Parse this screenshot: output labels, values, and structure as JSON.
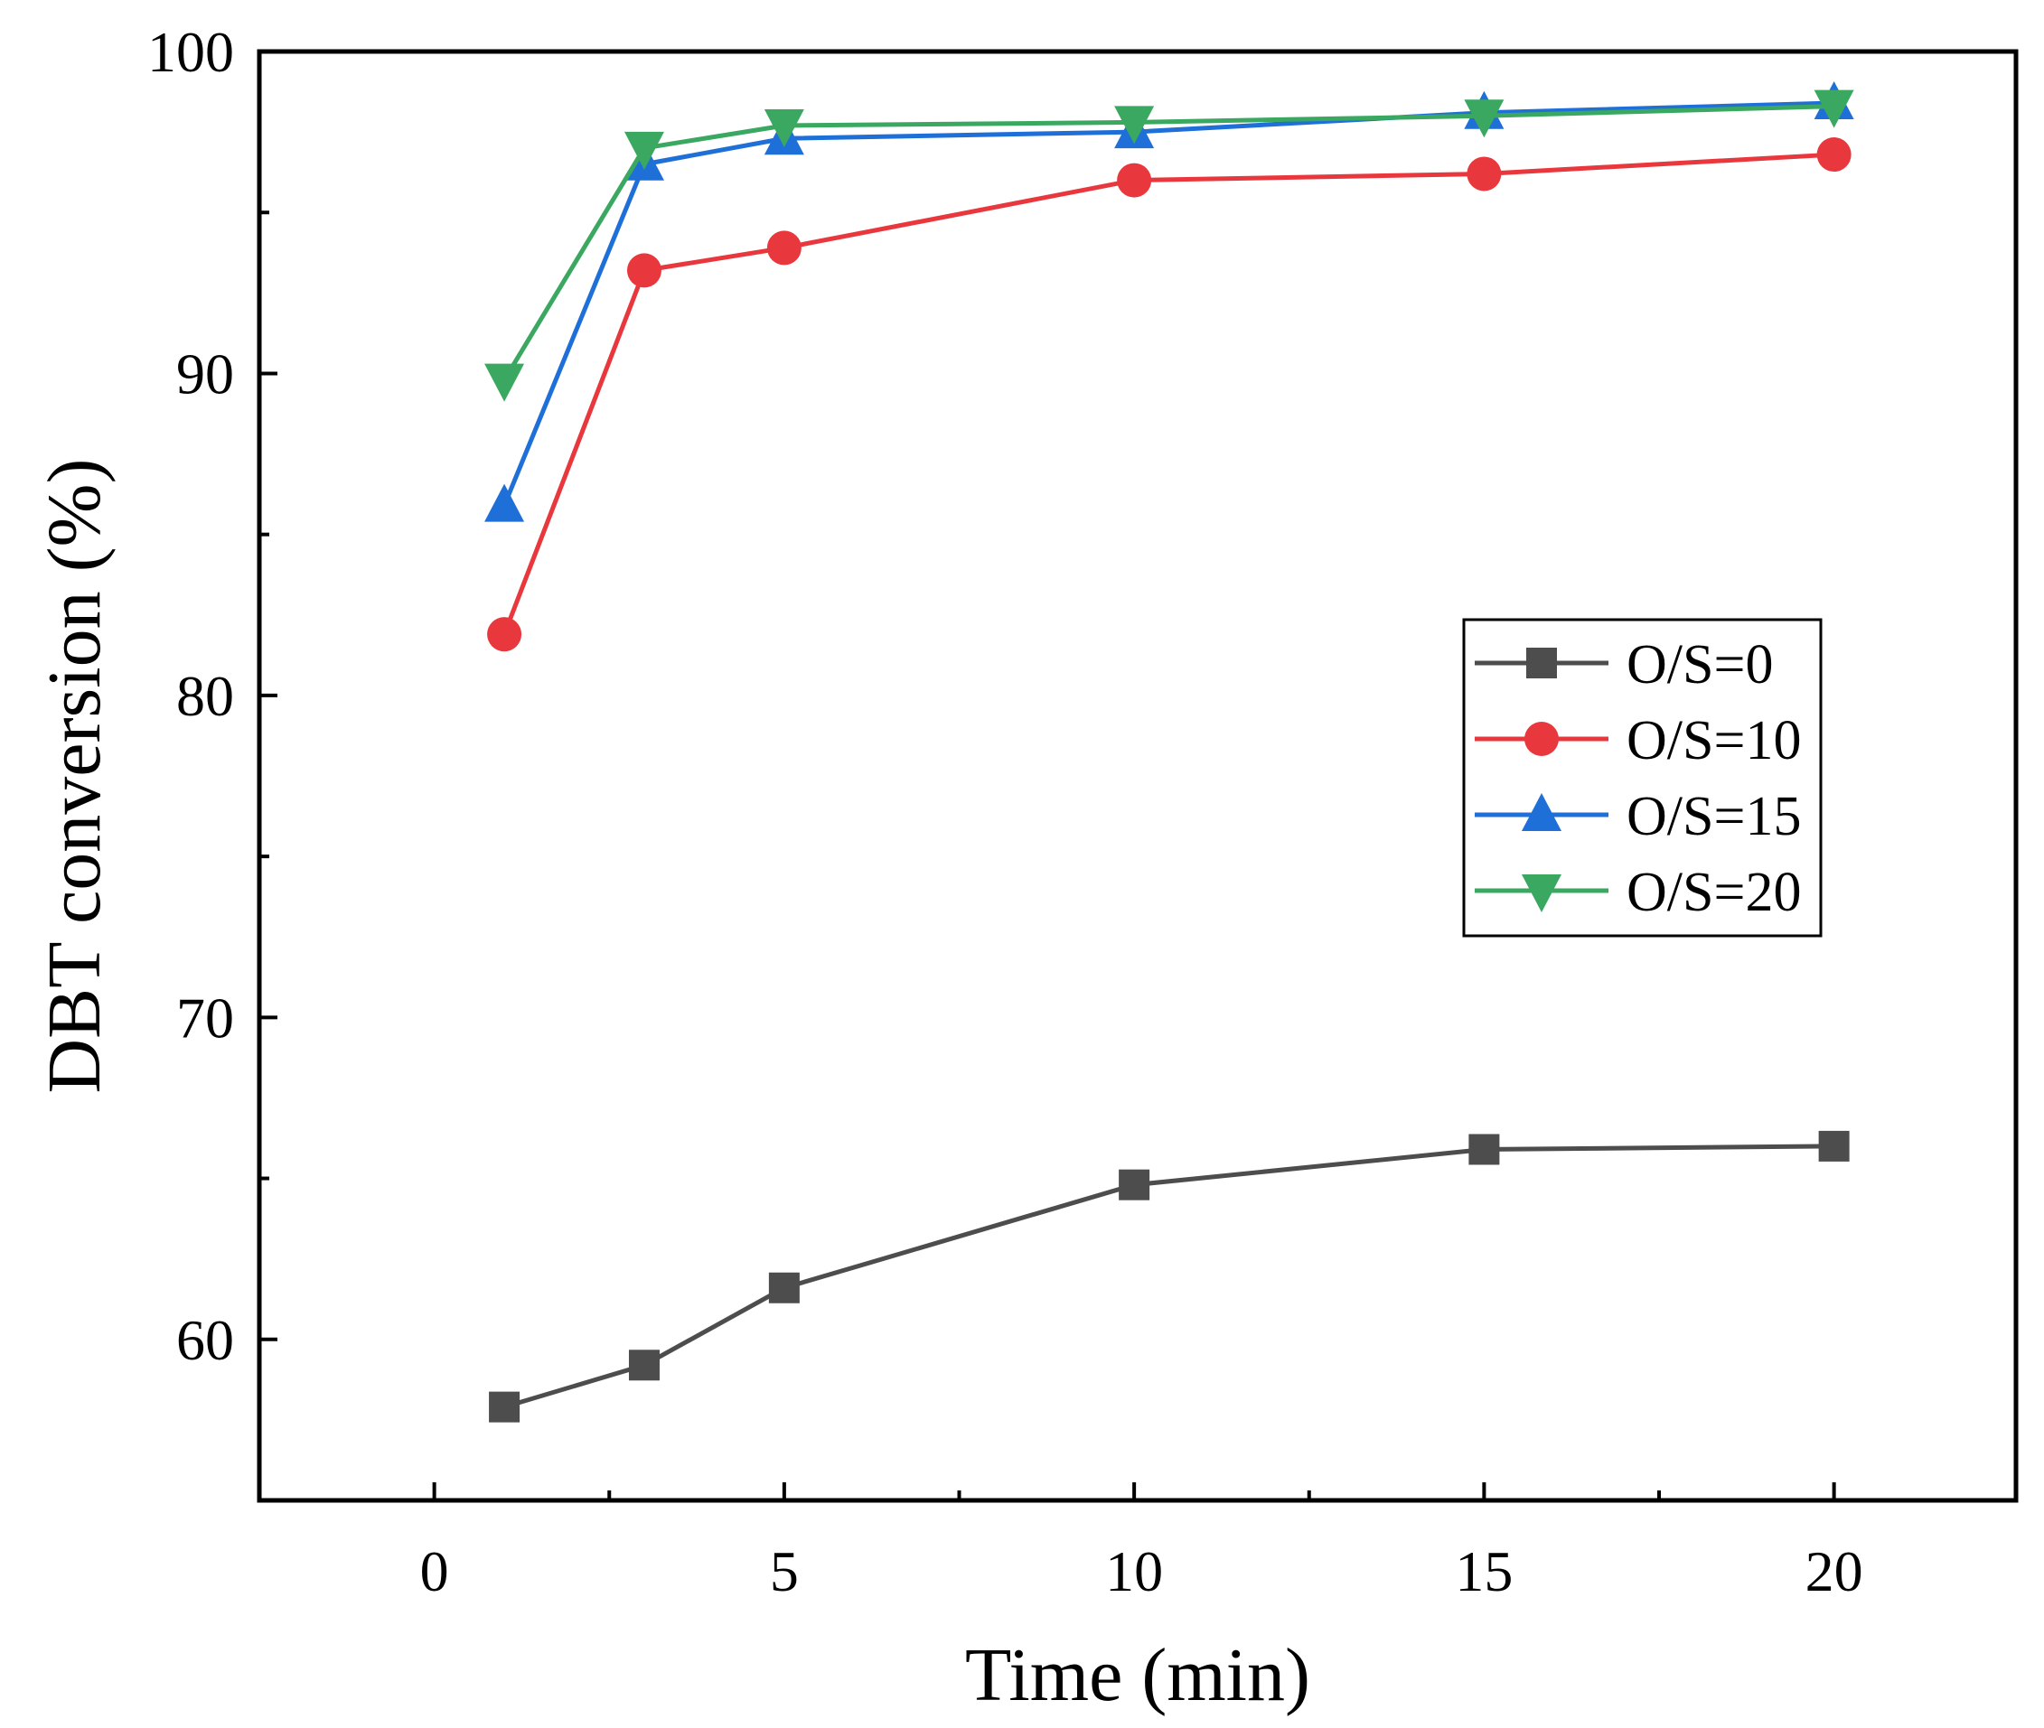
{
  "chart_data": {
    "type": "line",
    "title": "",
    "xlabel": "Time (min)",
    "ylabel": "DBT conversion (%)",
    "xlim": [
      -2.5,
      22.6
    ],
    "ylim": [
      55,
      100
    ],
    "xticks": [
      0,
      5,
      10,
      15,
      20
    ],
    "xtick_labels": [
      "0",
      "5",
      "10",
      "15",
      "20"
    ],
    "xminor": [
      2.5,
      7.5,
      12.5,
      17.5
    ],
    "yticks": [
      60,
      70,
      80,
      90,
      100
    ],
    "ytick_labels": [
      "60",
      "70",
      "80",
      "90",
      "100"
    ],
    "yminor": [
      65,
      75,
      85,
      95
    ],
    "grid": false,
    "legend_position": "center-right",
    "x": [
      1,
      3,
      5,
      10,
      15,
      20
    ],
    "series": [
      {
        "name": "O/S=0",
        "marker": "square",
        "color": "#4d4d4d",
        "values": [
          57.9,
          59.2,
          61.6,
          64.8,
          65.9,
          66.0
        ]
      },
      {
        "name": "O/S=10",
        "marker": "circle",
        "color": "#e8383d",
        "values": [
          81.9,
          93.2,
          93.9,
          96.0,
          96.2,
          96.8
        ]
      },
      {
        "name": "O/S=15",
        "marker": "triangle-up",
        "color": "#1f6fd8",
        "values": [
          85.9,
          96.5,
          97.3,
          97.5,
          98.1,
          98.4
        ]
      },
      {
        "name": "O/S=20",
        "marker": "triangle-down",
        "color": "#3aa860",
        "values": [
          89.8,
          97.0,
          97.7,
          97.8,
          98.0,
          98.3
        ]
      }
    ]
  }
}
